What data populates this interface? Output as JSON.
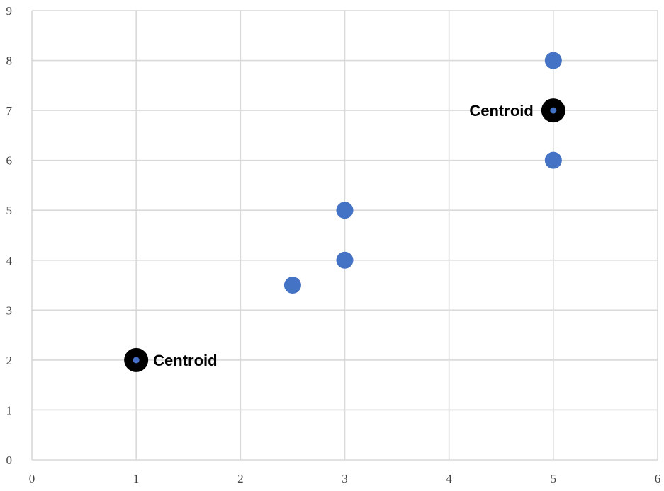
{
  "chart_data": {
    "type": "scatter",
    "xlim": [
      0,
      6
    ],
    "ylim": [
      0,
      9
    ],
    "x_ticks": [
      "0",
      "1",
      "2",
      "3",
      "4",
      "5",
      "6"
    ],
    "y_ticks": [
      "0",
      "1",
      "2",
      "3",
      "4",
      "5",
      "6",
      "7",
      "8",
      "9"
    ],
    "grid": true,
    "series": [
      {
        "color": "#4472C4",
        "points": [
          {
            "x": 2.5,
            "y": 3.5
          },
          {
            "x": 3,
            "y": 4
          },
          {
            "x": 3,
            "y": 5
          },
          {
            "x": 5,
            "y": 6
          },
          {
            "x": 5,
            "y": 8
          }
        ]
      }
    ],
    "annotations": [
      {
        "label": "Centroid",
        "x": 1,
        "y": 2,
        "label_side": "right",
        "marker_color": "#000000",
        "center_color": "#4472C4"
      },
      {
        "label": "Centroid",
        "x": 5,
        "y": 7,
        "label_side": "left",
        "marker_color": "#000000",
        "center_color": "#4472C4"
      }
    ]
  }
}
